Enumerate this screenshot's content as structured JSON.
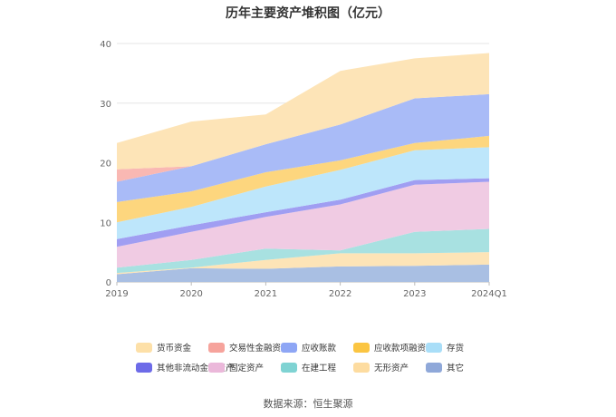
{
  "chart_data": {
    "type": "area",
    "stacked": true,
    "title": "历年主要资产堆积图（亿元）",
    "x": [
      "2019",
      "2020",
      "2021",
      "2022",
      "2023",
      "2024Q1"
    ],
    "ylim": [
      0,
      40
    ],
    "yticks": [
      0,
      10,
      20,
      30,
      40
    ],
    "grid": true,
    "legend_position": "bottom",
    "series": [
      {
        "name": "其它",
        "color": "#a9bfe3",
        "values": [
          1.3,
          2.3,
          2.2,
          2.6,
          2.7,
          2.9
        ]
      },
      {
        "name": "无形资产",
        "color": "#fde4b7",
        "values": [
          0.2,
          0.1,
          1.5,
          2.2,
          2.1,
          2.1
        ]
      },
      {
        "name": "在建工程",
        "color": "#a8e1e1",
        "values": [
          0.9,
          1.3,
          1.9,
          0.5,
          3.6,
          3.9
        ]
      },
      {
        "name": "固定资产",
        "color": "#f0cbe3",
        "values": [
          3.5,
          4.7,
          5.3,
          7.7,
          7.9,
          7.9
        ]
      },
      {
        "name": "其他非流动金融资产",
        "color": "#a09ef2",
        "values": [
          1.3,
          1.1,
          0.8,
          0.8,
          0.8,
          0.6
        ]
      },
      {
        "name": "存货",
        "color": "#bde6fb",
        "values": [
          2.8,
          3.1,
          4.3,
          5.0,
          5.0,
          5.2
        ]
      },
      {
        "name": "应收款项融资",
        "color": "#fdd67e",
        "values": [
          3.4,
          2.6,
          2.4,
          1.6,
          1.2,
          1.9
        ]
      },
      {
        "name": "应收账款",
        "color": "#a9bbf7",
        "values": [
          3.4,
          4.2,
          4.7,
          6.0,
          7.5,
          7.0
        ]
      },
      {
        "name": "交易性金融资产",
        "color": "#f9b8b3",
        "values": [
          2.1,
          0.0,
          0.0,
          0.0,
          0.0,
          0.0
        ]
      },
      {
        "name": "货币资金",
        "color": "#fde4b7",
        "values": [
          4.4,
          7.5,
          5.0,
          9.0,
          6.7,
          6.9
        ]
      }
    ]
  },
  "legend_items": [
    {
      "name": "货币资金",
      "color": "#fde0a8"
    },
    {
      "name": "交易性金融资产",
      "color": "#f6a39c"
    },
    {
      "name": "应收账款",
      "color": "#8ea6f5"
    },
    {
      "name": "应收款项融资",
      "color": "#fbc542"
    },
    {
      "name": "存货",
      "color": "#a9def8"
    },
    {
      "name": "其他非流动金融资产",
      "color": "#6d6be8"
    },
    {
      "name": "固定资产",
      "color": "#ebb8da"
    },
    {
      "name": "在建工程",
      "color": "#7fd3d3"
    },
    {
      "name": "无形资产",
      "color": "#fddca0"
    },
    {
      "name": "其它",
      "color": "#8fa8d9"
    }
  ],
  "footer": {
    "source": "数据来源：恒生聚源"
  }
}
